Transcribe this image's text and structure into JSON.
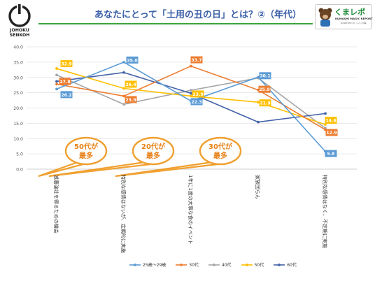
{
  "header": {
    "title": "あなたにとって「土用の丑の日」とは？②（年代）",
    "logo_text_line1": "JOHOKU",
    "logo_text_line2": "SENKOH",
    "brand_name": "くまレポ",
    "brand_sub": "KUMASHI MAGIC REPORT",
    "brand_powered": "powered by ふじの森",
    "accent_color": "#3aa53a",
    "title_color": "#3a5fa8"
  },
  "chart_data": {
    "type": "line",
    "categories": [
      "滋養強壮を得るための機会",
      "特別な感情はないが、定期的に実施",
      "1年に1度の大事な食のイベント",
      "家族団らん",
      "特別な感情はなく、不定期に実施"
    ],
    "series": [
      {
        "name": "25歳～29歳",
        "color": "#5b9bd5",
        "values": [
          26.2,
          35.0,
          22.3,
          30.1,
          5.8
        ],
        "labels": [
          true,
          true,
          true,
          true,
          true
        ]
      },
      {
        "name": "30代",
        "color": "#ed7d31",
        "values": [
          27.8,
          23.9,
          33.7,
          25.9,
          12.9
        ],
        "labels": [
          true,
          true,
          true,
          true,
          true
        ]
      },
      {
        "name": "40代",
        "color": "#a5a5a5",
        "values": [
          30.8,
          21.2,
          25.8,
          29.8,
          13.4
        ],
        "labels": [
          false,
          false,
          false,
          false,
          false
        ]
      },
      {
        "name": "50代",
        "color": "#ffc000",
        "values": [
          32.9,
          26.4,
          23.9,
          21.9,
          14.6
        ],
        "labels": [
          true,
          true,
          true,
          true,
          true
        ]
      },
      {
        "name": "60代",
        "color": "#4463a8",
        "values": [
          28.7,
          31.6,
          24.8,
          15.4,
          18.2
        ],
        "labels": [
          false,
          false,
          false,
          false,
          false
        ]
      }
    ],
    "ylim": [
      0,
      40
    ],
    "yticks": [
      "0.0",
      "5.0",
      "10.0",
      "15.0",
      "20.0",
      "25.0",
      "30.0",
      "35.0",
      "40.0"
    ],
    "grid": true,
    "legend_position": "bottom",
    "annotations": [
      {
        "text": "50代が最多",
        "line1": "50代が",
        "line2": "最多"
      },
      {
        "text": "20代が最多",
        "line1": "20代が",
        "line2": "最多"
      },
      {
        "text": "30代が最多",
        "line1": "30代が",
        "line2": "最多"
      }
    ]
  }
}
